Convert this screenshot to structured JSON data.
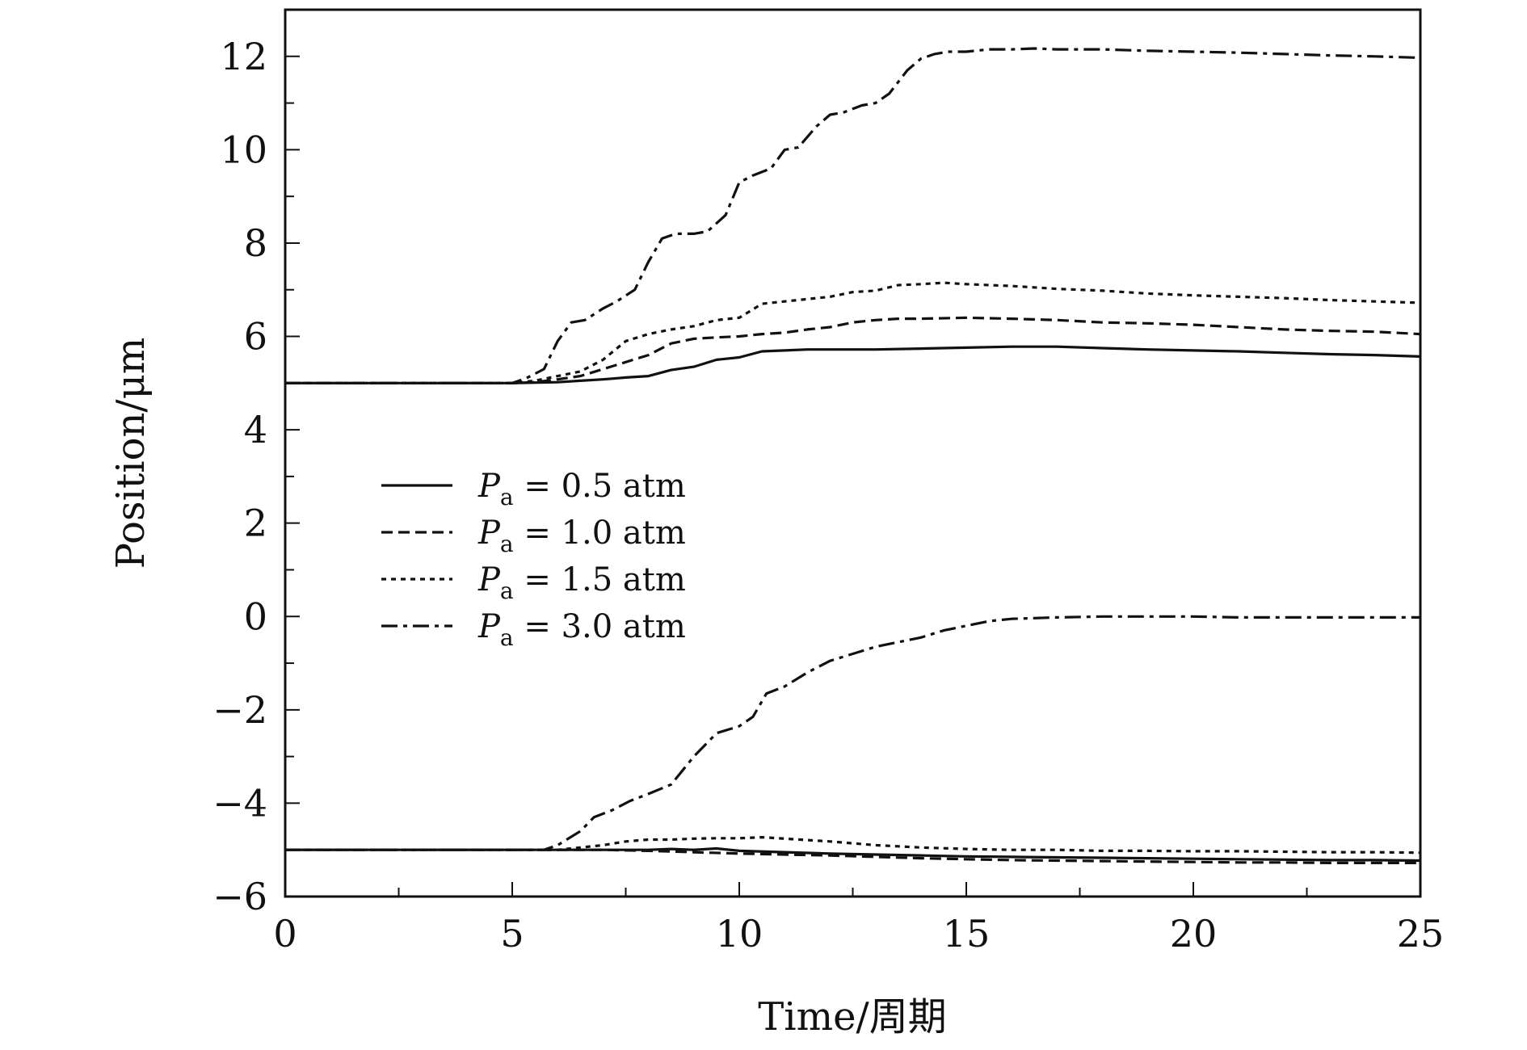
{
  "chart_data": {
    "type": "line",
    "title": "",
    "xlabel": "Time/周期",
    "ylabel": "Position/μm",
    "xlim": [
      0,
      25
    ],
    "ylim": [
      -6,
      13
    ],
    "xticks": [
      0,
      5,
      10,
      15,
      20,
      25
    ],
    "yticks": [
      -6,
      -4,
      -2,
      0,
      2,
      4,
      6,
      8,
      10,
      12
    ],
    "x_minor_step": 2.5,
    "y_minor_step": 1,
    "grid": false,
    "legend_position": "center-left",
    "series": [
      {
        "name": "Pa=0.5 atm",
        "legend_label": {
          "symbol": "P",
          "subscript": "a",
          "rest": " = 0.5 atm"
        },
        "dash": "solid",
        "upper": {
          "x": [
            0,
            5,
            6,
            6.5,
            7,
            7.5,
            8,
            8.5,
            9,
            9.5,
            10,
            10.5,
            11,
            11.5,
            12,
            13,
            14,
            15,
            16,
            17,
            18,
            19,
            20,
            21,
            22,
            23,
            24,
            25
          ],
          "y": [
            5.0,
            5.0,
            5.02,
            5.05,
            5.08,
            5.12,
            5.15,
            5.28,
            5.35,
            5.5,
            5.55,
            5.68,
            5.7,
            5.72,
            5.72,
            5.72,
            5.74,
            5.76,
            5.78,
            5.78,
            5.75,
            5.72,
            5.7,
            5.68,
            5.65,
            5.62,
            5.6,
            5.57
          ]
        },
        "lower": {
          "x": [
            0,
            5,
            6,
            7,
            8,
            8.5,
            9,
            9.5,
            10,
            11,
            12,
            13,
            14,
            15,
            16,
            17,
            18,
            19,
            20,
            21,
            22,
            23,
            24,
            25
          ],
          "y": [
            -5.0,
            -5.0,
            -5.0,
            -5.0,
            -5.0,
            -4.98,
            -5.0,
            -4.97,
            -5.02,
            -5.05,
            -5.08,
            -5.1,
            -5.12,
            -5.14,
            -5.15,
            -5.16,
            -5.17,
            -5.18,
            -5.19,
            -5.2,
            -5.21,
            -5.22,
            -5.22,
            -5.23
          ]
        }
      },
      {
        "name": "Pa=1.0 atm",
        "legend_label": {
          "symbol": "P",
          "subscript": "a",
          "rest": " = 1.0 atm"
        },
        "dash": "dashed",
        "upper": {
          "x": [
            0,
            5,
            5.5,
            6,
            6.5,
            7,
            7.5,
            8,
            8.5,
            9,
            9.5,
            10,
            10.5,
            11,
            11.5,
            12,
            12.5,
            13,
            13.5,
            14,
            15,
            16,
            17,
            18,
            19,
            20,
            21,
            22,
            23,
            24,
            25
          ],
          "y": [
            5.0,
            5.0,
            5.02,
            5.08,
            5.15,
            5.3,
            5.45,
            5.6,
            5.85,
            5.95,
            5.98,
            6.0,
            6.05,
            6.08,
            6.15,
            6.2,
            6.3,
            6.35,
            6.38,
            6.38,
            6.4,
            6.38,
            6.35,
            6.3,
            6.28,
            6.25,
            6.2,
            6.15,
            6.12,
            6.1,
            6.05
          ]
        },
        "lower": {
          "x": [
            0,
            5,
            6,
            7,
            8,
            9,
            10,
            11,
            12,
            13,
            14,
            15,
            16,
            17,
            18,
            19,
            20,
            21,
            22,
            23,
            24,
            25
          ],
          "y": [
            -5.0,
            -5.0,
            -5.0,
            -5.0,
            -5.02,
            -5.05,
            -5.08,
            -5.1,
            -5.12,
            -5.15,
            -5.18,
            -5.2,
            -5.22,
            -5.23,
            -5.24,
            -5.25,
            -5.26,
            -5.27,
            -5.27,
            -5.28,
            -5.28,
            -5.28
          ]
        }
      },
      {
        "name": "Pa=1.5 atm",
        "legend_label": {
          "symbol": "P",
          "subscript": "a",
          "rest": " = 1.5 atm"
        },
        "dash": "dotted",
        "upper": {
          "x": [
            0,
            5,
            5.5,
            6,
            6.5,
            7,
            7.5,
            8,
            8.5,
            9,
            9.5,
            10,
            10.5,
            11,
            11.5,
            12,
            12.5,
            13,
            13.5,
            14,
            14.5,
            15,
            16,
            17,
            18,
            19,
            20,
            21,
            22,
            23,
            24,
            25
          ],
          "y": [
            5.0,
            5.0,
            5.05,
            5.15,
            5.25,
            5.5,
            5.9,
            6.05,
            6.15,
            6.22,
            6.35,
            6.4,
            6.7,
            6.75,
            6.8,
            6.85,
            6.95,
            6.98,
            7.1,
            7.12,
            7.15,
            7.12,
            7.08,
            7.02,
            6.98,
            6.92,
            6.88,
            6.85,
            6.82,
            6.78,
            6.75,
            6.72
          ]
        },
        "lower": {
          "x": [
            0,
            5,
            6,
            6.5,
            7,
            7.5,
            8,
            8.5,
            9,
            9.5,
            10,
            10.5,
            11,
            12,
            13,
            14,
            15,
            16,
            17,
            18,
            19,
            20,
            21,
            22,
            23,
            24,
            25
          ],
          "y": [
            -5.0,
            -5.0,
            -5.0,
            -4.95,
            -4.9,
            -4.82,
            -4.78,
            -4.78,
            -4.76,
            -4.75,
            -4.75,
            -4.73,
            -4.76,
            -4.82,
            -4.9,
            -4.95,
            -4.98,
            -5.0,
            -5.0,
            -5.02,
            -5.02,
            -5.03,
            -5.03,
            -5.04,
            -5.05,
            -5.05,
            -5.06
          ]
        }
      },
      {
        "name": "Pa=3.0 atm",
        "legend_label": {
          "symbol": "P",
          "subscript": "a",
          "rest": " = 3.0 atm"
        },
        "dash": "dash-dot",
        "upper": {
          "x": [
            0,
            5,
            5.3,
            5.7,
            6.0,
            6.3,
            6.6,
            7.0,
            7.3,
            7.7,
            8.0,
            8.3,
            8.6,
            9.0,
            9.3,
            9.7,
            10.0,
            10.3,
            10.7,
            11.0,
            11.3,
            11.7,
            12.0,
            12.3,
            12.7,
            13.0,
            13.3,
            13.7,
            14.0,
            14.3,
            14.6,
            15.0,
            15.5,
            16.0,
            16.5,
            17,
            18,
            19,
            20,
            21,
            22,
            23,
            24,
            25
          ],
          "y": [
            5.0,
            5.0,
            5.1,
            5.3,
            5.9,
            6.3,
            6.35,
            6.6,
            6.75,
            7.0,
            7.6,
            8.1,
            8.2,
            8.2,
            8.25,
            8.6,
            9.3,
            9.45,
            9.6,
            10.0,
            10.05,
            10.5,
            10.75,
            10.8,
            10.95,
            11.0,
            11.2,
            11.7,
            11.95,
            12.05,
            12.1,
            12.1,
            12.15,
            12.15,
            12.17,
            12.15,
            12.15,
            12.12,
            12.1,
            12.08,
            12.05,
            12.02,
            12.0,
            11.97
          ]
        },
        "lower": {
          "x": [
            0,
            5,
            5.7,
            6.0,
            6.5,
            6.8,
            7.2,
            7.6,
            8.0,
            8.5,
            9.0,
            9.2,
            9.5,
            10.0,
            10.3,
            10.6,
            11.0,
            11.5,
            12.0,
            12.5,
            13.0,
            13.5,
            14.0,
            14.5,
            15.0,
            15.5,
            16.0,
            17,
            18,
            19,
            20,
            21,
            22,
            23,
            24,
            25
          ],
          "y": [
            -5.0,
            -5.0,
            -5.0,
            -4.9,
            -4.6,
            -4.3,
            -4.15,
            -3.95,
            -3.8,
            -3.6,
            -3.0,
            -2.8,
            -2.5,
            -2.35,
            -2.15,
            -1.65,
            -1.5,
            -1.2,
            -0.95,
            -0.8,
            -0.65,
            -0.55,
            -0.45,
            -0.3,
            -0.2,
            -0.1,
            -0.05,
            -0.02,
            0.0,
            0.0,
            0.0,
            -0.02,
            -0.02,
            -0.02,
            -0.02,
            -0.02
          ]
        }
      }
    ]
  }
}
